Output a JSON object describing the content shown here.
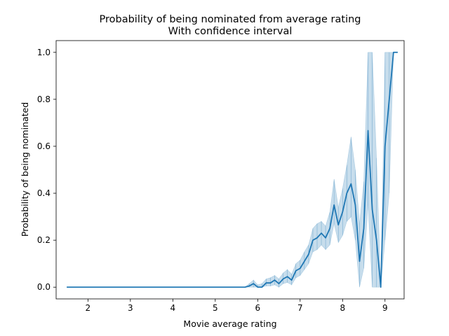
{
  "chart_data": {
    "type": "line",
    "title": "Probability of being nominated from average rating\nWith confidence interval",
    "title_lines": [
      "Probability of being nominated from average rating",
      "With confidence interval"
    ],
    "xlabel": "Movie average rating",
    "ylabel": "Probability of being nominated",
    "xlim": [
      1.25,
      9.45
    ],
    "ylim": [
      -0.05,
      1.05
    ],
    "xticks": [
      2,
      3,
      4,
      5,
      6,
      7,
      8,
      9
    ],
    "yticks": [
      0.0,
      0.2,
      0.4,
      0.6,
      0.8,
      1.0
    ],
    "xtick_labels": [
      "2",
      "3",
      "4",
      "5",
      "6",
      "7",
      "8",
      "9"
    ],
    "ytick_labels": [
      "0.0",
      "0.2",
      "0.4",
      "0.6",
      "0.8",
      "1.0"
    ],
    "grid": false,
    "colors": {
      "line": "#1f77b4",
      "band": "#1f77b4",
      "band_opacity": 0.25
    },
    "series": [
      {
        "x": [
          1.5,
          5.7,
          5.8,
          5.9,
          6.0,
          6.1,
          6.2,
          6.3,
          6.4,
          6.5,
          6.6,
          6.7,
          6.8,
          6.9,
          7.0,
          7.1,
          7.2,
          7.3,
          7.4,
          7.5,
          7.6,
          7.7,
          7.8,
          7.9,
          8.0,
          8.1,
          8.2,
          8.3,
          8.4,
          8.5,
          8.6,
          8.7,
          8.8,
          8.9,
          9.0,
          9.1,
          9.2,
          9.3
        ],
        "y": [
          0.0,
          0.0,
          0.005,
          0.015,
          0.0,
          0.0,
          0.018,
          0.018,
          0.03,
          0.015,
          0.035,
          0.045,
          0.03,
          0.07,
          0.08,
          0.11,
          0.14,
          0.2,
          0.21,
          0.23,
          0.21,
          0.25,
          0.35,
          0.265,
          0.32,
          0.4,
          0.44,
          0.35,
          0.11,
          0.25,
          0.667,
          0.33,
          0.2,
          0.0,
          0.6,
          0.8,
          1.0,
          1.0
        ],
        "ci_low": [
          0.0,
          0.0,
          0.0,
          0.0,
          0.0,
          0.0,
          0.005,
          0.005,
          0.01,
          0.0,
          0.015,
          0.02,
          0.01,
          0.04,
          0.05,
          0.075,
          0.1,
          0.15,
          0.16,
          0.18,
          0.16,
          0.18,
          0.27,
          0.19,
          0.22,
          0.28,
          0.3,
          0.2,
          0.0,
          0.08,
          0.35,
          0.0,
          0.0,
          0.0,
          0.2,
          0.4,
          1.0,
          1.0
        ],
        "ci_high": [
          0.0,
          0.0,
          0.015,
          0.03,
          0.01,
          0.015,
          0.035,
          0.04,
          0.05,
          0.035,
          0.06,
          0.075,
          0.055,
          0.1,
          0.115,
          0.15,
          0.18,
          0.25,
          0.27,
          0.28,
          0.26,
          0.32,
          0.46,
          0.34,
          0.42,
          0.52,
          0.64,
          0.5,
          0.27,
          0.45,
          1.0,
          1.0,
          0.55,
          0.0,
          1.0,
          1.0,
          1.0,
          1.0
        ]
      }
    ]
  }
}
